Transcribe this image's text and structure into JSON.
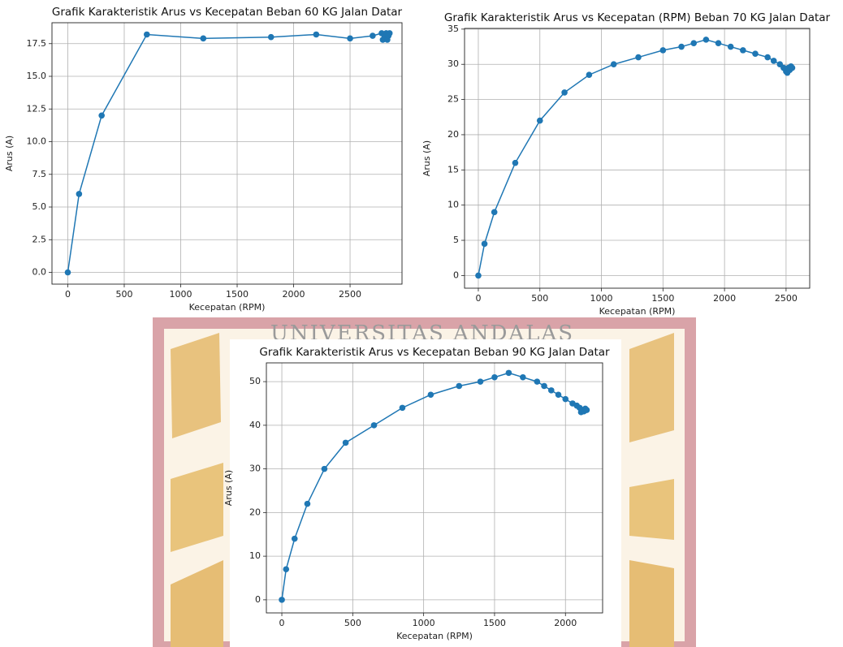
{
  "watermark": "UNIVERSITAS ANDALAS",
  "chart_data": [
    {
      "type": "line",
      "title": "Grafik Karakteristik Arus vs Kecepatan Beban 60 KG Jalan Datar",
      "xlabel": "Kecepatan (RPM)",
      "ylabel": "Arus (A)",
      "color": "#1f77b4",
      "grid": true,
      "markers": true,
      "x": [
        0,
        100,
        300,
        700,
        1200,
        1800,
        2200,
        2500,
        2700,
        2780,
        2790,
        2800,
        2810,
        2820,
        2830,
        2840,
        2850
      ],
      "values": [
        0,
        6,
        12,
        18.2,
        17.9,
        18,
        18.2,
        17.9,
        18.1,
        18.3,
        17.8,
        18.2,
        17.9,
        18.3,
        17.8,
        18.1,
        18.3
      ],
      "xlim": [
        -140,
        2960
      ],
      "ylim": [
        -0.9,
        19.1
      ],
      "xticks": [
        0,
        500,
        1000,
        1500,
        2000,
        2500
      ],
      "yticks": [
        {
          "value": 0,
          "label": "0.0"
        },
        2.5,
        {
          "value": 5,
          "label": "5.0"
        },
        7.5,
        {
          "value": 10,
          "label": "10.0"
        },
        12.5,
        {
          "value": 15,
          "label": "15.0"
        },
        17.5
      ]
    },
    {
      "type": "line",
      "title": "Grafik Karakteristik Arus vs Kecepatan (RPM) Beban 70 KG Jalan Datar",
      "xlabel": "Kecepatan (RPM)",
      "ylabel": "Arus (A)",
      "color": "#1f77b4",
      "grid": true,
      "markers": true,
      "x": [
        0,
        50,
        130,
        300,
        500,
        700,
        900,
        1100,
        1300,
        1500,
        1650,
        1750,
        1850,
        1950,
        2050,
        2150,
        2250,
        2350,
        2400,
        2450,
        2480,
        2500,
        2510,
        2520,
        2530,
        2540,
        2550
      ],
      "values": [
        0,
        4.5,
        9,
        16,
        22,
        26,
        28.5,
        30,
        31,
        32,
        32.5,
        33,
        33.5,
        33,
        32.5,
        32,
        31.5,
        31,
        30.5,
        30,
        29.5,
        29,
        28.8,
        29.5,
        29.2,
        29.7,
        29.5
      ],
      "xlim": [
        -112,
        2692
      ],
      "ylim": [
        -1.8,
        35.1
      ],
      "xticks": [
        0,
        500,
        1000,
        1500,
        2000,
        2500
      ],
      "yticks": [
        0,
        5,
        10,
        15,
        20,
        25,
        30,
        35
      ]
    },
    {
      "type": "line",
      "title": "Grafik Karakteristik Arus vs Kecepatan Beban 90 KG Jalan Datar",
      "xlabel": "Kecepatan (RPM)",
      "ylabel": "Arus (A)",
      "color": "#1f77b4",
      "grid": true,
      "markers": true,
      "x": [
        0,
        30,
        90,
        180,
        300,
        450,
        650,
        850,
        1050,
        1250,
        1400,
        1500,
        1600,
        1700,
        1800,
        1850,
        1900,
        1950,
        2000,
        2050,
        2080,
        2100,
        2110,
        2120,
        2130,
        2140,
        2150
      ],
      "values": [
        0,
        7,
        14,
        22,
        30,
        36,
        40,
        44,
        47,
        49,
        50,
        51,
        52,
        51,
        50,
        49,
        48,
        47,
        46,
        45,
        44.5,
        44,
        43,
        43.5,
        43.2,
        43.8,
        43.5
      ],
      "xlim": [
        -109,
        2262
      ],
      "ylim": [
        -3,
        54.3
      ],
      "xticks": [
        0,
        500,
        1000,
        1500,
        2000
      ],
      "yticks": [
        0,
        10,
        20,
        30,
        40,
        50
      ]
    }
  ]
}
